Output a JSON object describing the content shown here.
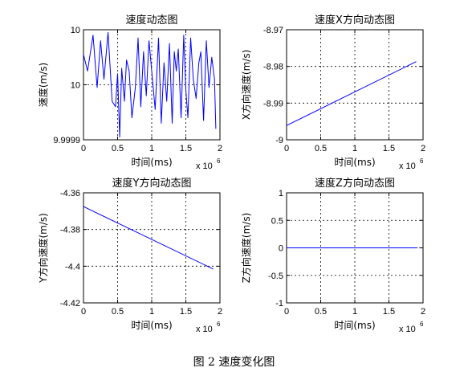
{
  "caption": "图 2  速度变化图",
  "chart_data": [
    {
      "type": "line",
      "title": "速度动态图",
      "xlabel": "时间(ms)",
      "ylabel": "速度(m/s)",
      "x_exponent": "x 10",
      "x_exponent_power": "6",
      "xlim": [
        0,
        2
      ],
      "ylim": [
        0,
        2
      ],
      "xticks": [
        "0",
        "0.5",
        "1",
        "1.5",
        "2"
      ],
      "xtick_values": [
        0,
        0.5,
        1,
        1.5,
        2
      ],
      "yticks": [
        "10",
        "10",
        "9.9999"
      ],
      "ytick_values": [
        2,
        1,
        0
      ],
      "grid": true,
      "color": "#0000ff",
      "series": [
        {
          "x": [
            0,
            0.06,
            0.14,
            0.2,
            0.25,
            0.3,
            0.36,
            0.42,
            0.47,
            0.5,
            0.53,
            0.56,
            0.6,
            0.63,
            0.67,
            0.71,
            0.76,
            0.8,
            0.84,
            0.88,
            0.92,
            0.96,
            1.0,
            1.05,
            1.1,
            1.14,
            1.18,
            1.22,
            1.26,
            1.3,
            1.33,
            1.36,
            1.39,
            1.43,
            1.47,
            1.5,
            1.53,
            1.57,
            1.61,
            1.65,
            1.69,
            1.72,
            1.76,
            1.8,
            1.84,
            1.88,
            1.92,
            1.94
          ],
          "y": [
            1.55,
            1.25,
            1.9,
            0.95,
            1.8,
            1.1,
            1.95,
            0.7,
            0.6,
            1.2,
            0.05,
            1.3,
            0.7,
            1.45,
            1.25,
            0.4,
            0.95,
            1.85,
            0.6,
            1.6,
            0.8,
            1.8,
            1.25,
            0.55,
            1.85,
            0.3,
            1.4,
            0.7,
            1.75,
            0.3,
            1.6,
            1.25,
            1.65,
            0.4,
            1.9,
            0.9,
            0.4,
            1.85,
            1.1,
            0.75,
            1.4,
            1.6,
            0.35,
            1.8,
            0.95,
            1.5,
            1.1,
            0.2
          ]
        }
      ]
    },
    {
      "type": "line",
      "title": "速度X方向动态图",
      "xlabel": "时间(ms)",
      "ylabel": "X方向速度(m/s)",
      "x_exponent": "x 10",
      "x_exponent_power": "6",
      "xlim": [
        0,
        2
      ],
      "ylim": [
        -9,
        -8.97
      ],
      "xticks": [
        "0",
        "0.5",
        "1",
        "1.5",
        "2"
      ],
      "xtick_values": [
        0,
        0.5,
        1,
        1.5,
        2
      ],
      "yticks": [
        "-8.97",
        "-8.98",
        "-8.99",
        "-9"
      ],
      "ytick_values": [
        -8.97,
        -8.98,
        -8.99,
        -9
      ],
      "grid": true,
      "color": "#0000ff",
      "series": [
        {
          "x": [
            0,
            1.9
          ],
          "y": [
            -8.9961,
            -8.9787
          ]
        }
      ]
    },
    {
      "type": "line",
      "title": "速度Y方向动态图",
      "xlabel": "时间(ms)",
      "ylabel": "Y方向速度(m/s)",
      "x_exponent": "x 10",
      "x_exponent_power": "6",
      "xlim": [
        0,
        2
      ],
      "ylim": [
        -4.42,
        -4.36
      ],
      "xticks": [
        "0",
        "0.5",
        "1",
        "1.5",
        "2"
      ],
      "xtick_values": [
        0,
        0.5,
        1,
        1.5,
        2
      ],
      "yticks": [
        "-4.36",
        "-4.38",
        "-4.4",
        "-4.42"
      ],
      "ytick_values": [
        -4.36,
        -4.38,
        -4.4,
        -4.42
      ],
      "grid": true,
      "color": "#0000ff",
      "series": [
        {
          "x": [
            0,
            1.9
          ],
          "y": [
            -4.3675,
            -4.4015
          ]
        }
      ]
    },
    {
      "type": "line",
      "title": "速度Z方向动态图",
      "xlabel": "时间(ms)",
      "ylabel": "Z方向速度(m/s)",
      "x_exponent": "x 10",
      "x_exponent_power": "6",
      "xlim": [
        0,
        2
      ],
      "ylim": [
        -1,
        1
      ],
      "xticks": [
        "0",
        "0.5",
        "1",
        "1.5",
        "2"
      ],
      "xtick_values": [
        0,
        0.5,
        1,
        1.5,
        2
      ],
      "yticks": [
        "1",
        "0.5",
        "0",
        "-0.5",
        "-1"
      ],
      "ytick_values": [
        1,
        0.5,
        0,
        -0.5,
        -1
      ],
      "grid": true,
      "color": "#0000ff",
      "series": [
        {
          "x": [
            0,
            1.92
          ],
          "y": [
            0,
            0
          ]
        }
      ]
    }
  ]
}
